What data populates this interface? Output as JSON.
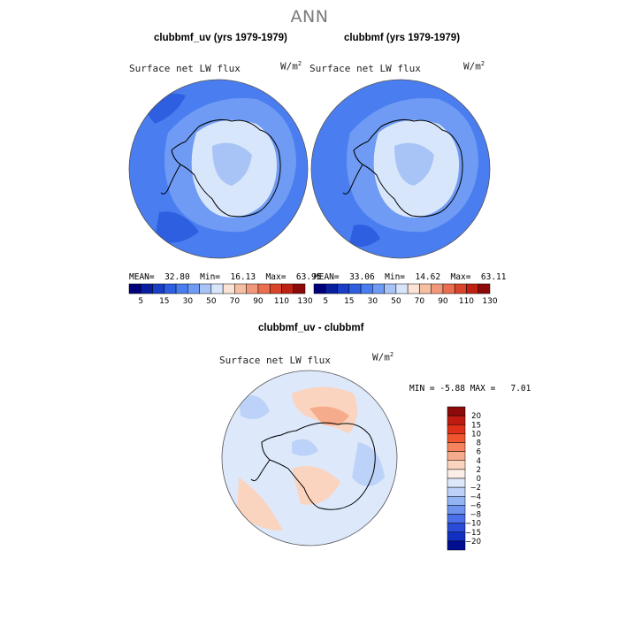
{
  "title": "ANN",
  "panels": [
    {
      "title": "clubbmf_uv (yrs 1979-1979)",
      "variable": "Surface net LW flux",
      "units_base": "W/m",
      "units_exp": "2",
      "mean_label": "MEAN=",
      "mean": "32.80",
      "min_label": "Min=",
      "min": "16.13",
      "max_label": "Max=",
      "max": "63.95"
    },
    {
      "title": "clubbmf (yrs 1979-1979)",
      "variable": "Surface net LW flux",
      "units_base": "W/m",
      "units_exp": "2",
      "mean_label": "MEAN=",
      "mean": "33.06",
      "min_label": "Min=",
      "min": "14.62",
      "max_label": "Max=",
      "max": "63.11"
    }
  ],
  "diff_panel": {
    "title": "clubbmf_uv - clubbmf",
    "variable": "Surface net LW flux",
    "units_base": "W/m",
    "units_exp": "2",
    "min_label": "MIN =",
    "min": "-5.88",
    "max_label": "MAX =",
    "max": "7.01"
  },
  "chart_data": [
    {
      "type": "heatmap",
      "projection": "south-polar-stereographic",
      "title": "clubbmf_uv (yrs 1979-1979)",
      "variable": "Surface net LW flux",
      "units": "W/m^2",
      "mean": 32.8,
      "min": 16.13,
      "max": 63.95,
      "colorbar_levels": [
        5,
        10,
        15,
        20,
        30,
        40,
        50,
        60,
        70,
        80,
        90,
        100,
        110,
        120,
        130
      ],
      "colorbar_tick_labels": [
        "5",
        "15",
        "30",
        "50",
        "70",
        "90",
        "110",
        "130"
      ]
    },
    {
      "type": "heatmap",
      "projection": "south-polar-stereographic",
      "title": "clubbmf (yrs 1979-1979)",
      "variable": "Surface net LW flux",
      "units": "W/m^2",
      "mean": 33.06,
      "min": 14.62,
      "max": 63.11,
      "colorbar_levels": [
        5,
        10,
        15,
        20,
        30,
        40,
        50,
        60,
        70,
        80,
        90,
        100,
        110,
        120,
        130
      ],
      "colorbar_tick_labels": [
        "5",
        "15",
        "30",
        "50",
        "70",
        "90",
        "110",
        "130"
      ]
    },
    {
      "type": "heatmap",
      "projection": "south-polar-stereographic",
      "title": "clubbmf_uv - clubbmf",
      "variable": "Surface net LW flux",
      "units": "W/m^2",
      "min": -5.88,
      "max": 7.01,
      "colorbar_levels": [
        20,
        15,
        10,
        8,
        6,
        4,
        2,
        0,
        -2,
        -4,
        -6,
        -8,
        -10,
        -15,
        -20
      ],
      "colorbar_tick_labels": [
        "20",
        "15",
        "10",
        "8",
        "6",
        "4",
        "2",
        "0",
        "−2",
        "−4",
        "−6",
        "−8",
        "−10",
        "−15",
        "−20"
      ]
    }
  ],
  "colors": {
    "seq": [
      "#00007a",
      "#0a1fa0",
      "#1a3ec6",
      "#2d5fe0",
      "#4a7ef0",
      "#6f9bf4",
      "#a8c4f6",
      "#d8e6fb",
      "#fbe3d5",
      "#f6bfa2",
      "#f2987a",
      "#ea6e4f",
      "#d9452a",
      "#bf2215",
      "#8c0a0a"
    ],
    "div": [
      "#8c0a0a",
      "#bf1a10",
      "#e0301a",
      "#f0552f",
      "#f4835e",
      "#f6ab8c",
      "#fad4bf",
      "#fbeee6",
      "#dde8fb",
      "#bcd2f8",
      "#93b4f4",
      "#6f94ee",
      "#4a6fe8",
      "#2a4bd8",
      "#1230c0",
      "#000e90"
    ],
    "ocean_seq": "#4a7ef0",
    "ocean_alt": "#6f9bf4",
    "deep_seq": "#2d5fe0",
    "coast": "#000000"
  }
}
